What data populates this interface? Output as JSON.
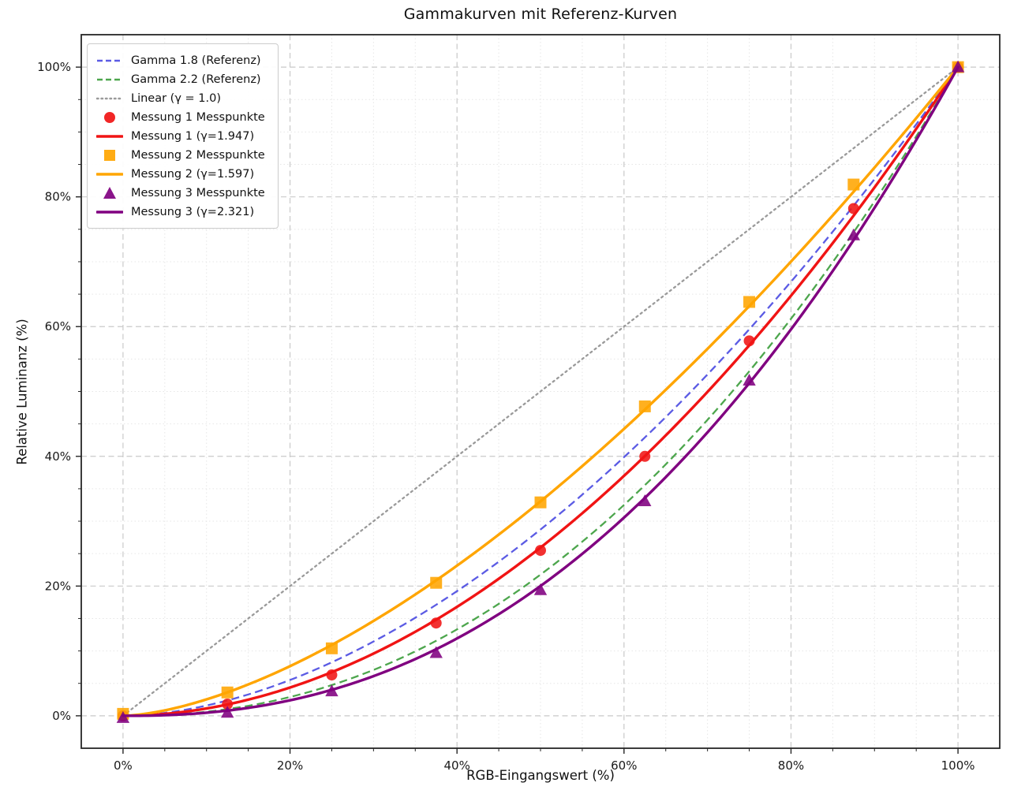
{
  "chart_data": {
    "type": "scatter",
    "title": "Gammakurven mit Referenz-Kurven",
    "xlabel": "RGB-Eingangswert (%)",
    "ylabel": "Relative Luminanz (%)",
    "xlim": [
      -5,
      105
    ],
    "ylim": [
      -5,
      105
    ],
    "x_tick_values": [
      0,
      20,
      40,
      60,
      80,
      100
    ],
    "x_tick_labels": [
      "0%",
      "20%",
      "40%",
      "60%",
      "80%",
      "100%"
    ],
    "y_tick_values": [
      0,
      20,
      40,
      60,
      80,
      100
    ],
    "y_tick_labels": [
      "0%",
      "20%",
      "40%",
      "60%",
      "80%",
      "100%"
    ],
    "minor_tick_step": 5,
    "grid": {
      "major": true,
      "minor": true
    },
    "legend_position": "upper-left",
    "reference_curves": [
      {
        "label": "Gamma 1.8 (Referenz)",
        "gamma": 1.8,
        "color": "#5b5be4",
        "style": "dashed"
      },
      {
        "label": "Gamma 2.2 (Referenz)",
        "gamma": 2.2,
        "color": "#4da64d",
        "style": "dashed"
      },
      {
        "label": "Linear (γ = 1.0)",
        "gamma": 1.0,
        "color": "#9a9a9a",
        "style": "dotted"
      }
    ],
    "measurements": [
      {
        "points_label": "Messung 1 Messpunkte",
        "fit_label": "Messung 1 (γ=1.947)",
        "fit_gamma": 1.947,
        "color": "#f01414",
        "marker": "circle",
        "x": [
          0,
          12.5,
          25,
          37.5,
          50,
          62.5,
          75,
          87.5,
          100
        ],
        "y": [
          0.0,
          1.8,
          6.3,
          14.3,
          25.5,
          40.0,
          57.8,
          78.2,
          100.0
        ]
      },
      {
        "points_label": "Messung 2 Messpunkte",
        "fit_label": "Messung 2 (γ=1.597)",
        "fit_gamma": 1.597,
        "color": "#ffa500",
        "marker": "square",
        "x": [
          0,
          12.5,
          25,
          37.5,
          50,
          62.5,
          75,
          87.5,
          100
        ],
        "y": [
          0.3,
          3.6,
          10.4,
          20.5,
          32.9,
          47.7,
          63.8,
          81.9,
          100.0
        ]
      },
      {
        "points_label": "Messung 3 Messpunkte",
        "fit_label": "Messung 3 (γ=2.321)",
        "fit_gamma": 2.321,
        "color": "#800080",
        "marker": "triangle",
        "x": [
          0,
          12.5,
          25,
          37.5,
          50,
          62.5,
          75,
          87.5,
          100
        ],
        "y": [
          -0.3,
          0.5,
          3.8,
          9.7,
          19.4,
          33.1,
          51.7,
          74.1,
          100.0
        ]
      }
    ],
    "style": {
      "major_grid_color": "#c9c9c9",
      "minor_grid_color": "#e6e6e6",
      "spine_color": "#262626",
      "tick_label_color": "#1a1a1a",
      "background": "#ffffff"
    }
  }
}
